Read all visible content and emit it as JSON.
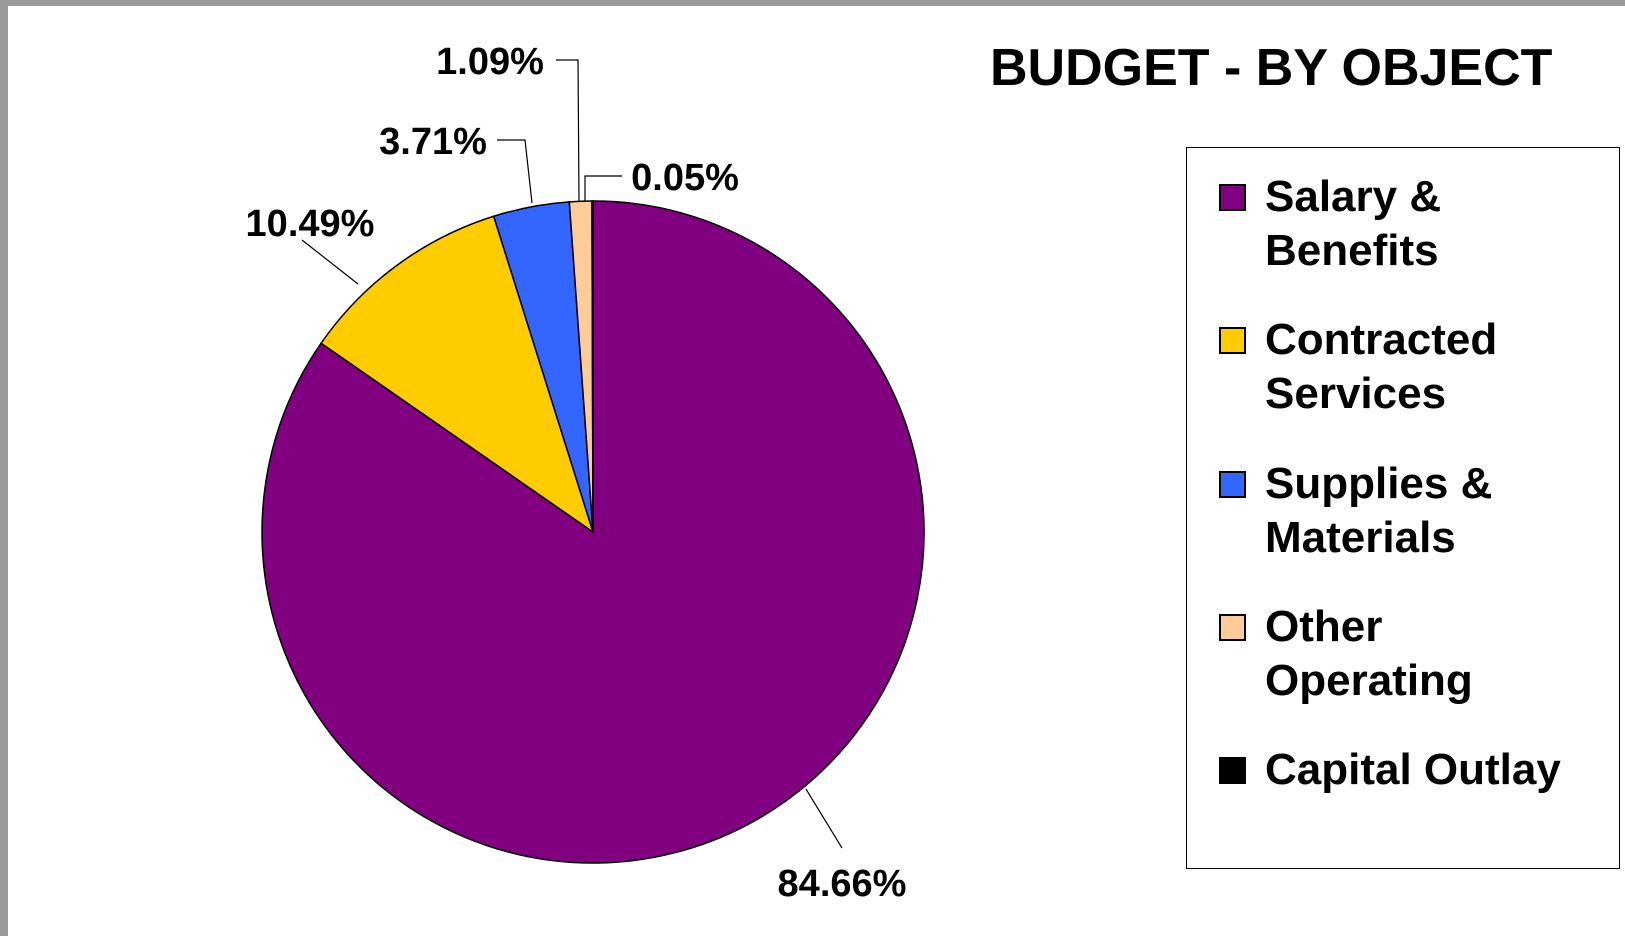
{
  "chart_data": {
    "type": "pie",
    "title": "BUDGET - BY OBJECT",
    "categories": [
      "Salary & Benefits",
      "Contracted Services",
      "Supplies & Materials",
      "Other Operating",
      "Capital Outlay"
    ],
    "values": [
      84.66,
      10.49,
      3.71,
      1.09,
      0.05
    ],
    "value_labels": [
      "84.66%",
      "10.49%",
      "3.71%",
      "1.09%",
      "0.05%"
    ],
    "colors": [
      "#800080",
      "#ffcc00",
      "#3366ff",
      "#ffcc99",
      "#000000"
    ],
    "legend_position": "right"
  },
  "legend": {
    "items": [
      {
        "label_line1": "Salary &",
        "label_line2": "Benefits",
        "color": "#800080"
      },
      {
        "label_line1": "Contracted",
        "label_line2": "Services",
        "color": "#ffcc00"
      },
      {
        "label_line1": "Supplies &",
        "label_line2": "Materials",
        "color": "#3366ff"
      },
      {
        "label_line1": "Other",
        "label_line2": "Operating",
        "color": "#ffcc99"
      },
      {
        "label_line1": "Capital Outlay",
        "label_line2": "",
        "color": "#000000"
      }
    ]
  }
}
